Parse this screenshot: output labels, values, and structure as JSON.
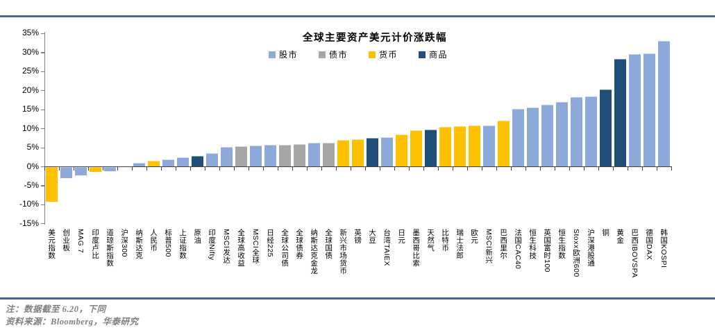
{
  "frame": {
    "background": "#ffffff",
    "top_rule_color": "#4a6a96",
    "bottom_rule_color": "#44618c"
  },
  "notes": {
    "line1": "注：数据截至 6.20，下同",
    "line2": "资料来源：Bloomberg，华泰研究"
  },
  "chart_data": {
    "type": "bar",
    "title": "全球主要资产美元计价涨跌幅",
    "value_unit": "%",
    "ylim": [
      -15,
      35
    ],
    "ytick_step": 5,
    "ytick_labels": [
      "35%",
      "30%",
      "25%",
      "20%",
      "15%",
      "10%",
      "5%",
      "0%",
      "-5%",
      "-10%",
      "-15%"
    ],
    "grid": false,
    "legend_position": "top-center",
    "axis_colors": {
      "value_axis": "#7f7f7f",
      "category_axis": "#404040"
    },
    "categories_legend": [
      {
        "id": "stock",
        "label": "股市",
        "color": "#8EAADB"
      },
      {
        "id": "bond",
        "label": "债市",
        "color": "#A6A6A6"
      },
      {
        "id": "currency",
        "label": "货币",
        "color": "#FFC000"
      },
      {
        "id": "commodity",
        "label": "商品",
        "color": "#1F4E79"
      }
    ],
    "bars": [
      {
        "label": "美元指数",
        "group": "currency",
        "value": -9.0
      },
      {
        "label": "创业板",
        "group": "stock",
        "value": -2.8
      },
      {
        "label": "MAG 7",
        "group": "stock",
        "value": -2.2
      },
      {
        "label": "印度卢比",
        "group": "currency",
        "value": -1.3
      },
      {
        "label": "道琼斯指数",
        "group": "stock",
        "value": -1.0
      },
      {
        "label": "沪深300",
        "group": "stock",
        "value": 0.0
      },
      {
        "label": "纳斯达克",
        "group": "stock",
        "value": 1.0
      },
      {
        "label": "人民币",
        "group": "currency",
        "value": 1.5
      },
      {
        "label": "标普500",
        "group": "stock",
        "value": 1.9
      },
      {
        "label": "上证指数",
        "group": "stock",
        "value": 2.5
      },
      {
        "label": "原油",
        "group": "commodity",
        "value": 2.8
      },
      {
        "label": "印度Nifty",
        "group": "stock",
        "value": 3.5
      },
      {
        "label": "MSCI发达",
        "group": "stock",
        "value": 5.2
      },
      {
        "label": "全球高收益",
        "group": "bond",
        "value": 5.4
      },
      {
        "label": "MSCI全球",
        "group": "stock",
        "value": 5.6
      },
      {
        "label": "日经225",
        "group": "stock",
        "value": 5.7
      },
      {
        "label": "全球公司债",
        "group": "bond",
        "value": 5.8
      },
      {
        "label": "全球债券",
        "group": "bond",
        "value": 6.0
      },
      {
        "label": "纳斯达克金龙",
        "group": "stock",
        "value": 6.2
      },
      {
        "label": "全球国债",
        "group": "bond",
        "value": 6.3
      },
      {
        "label": "新兴市场货币",
        "group": "currency",
        "value": 7.0
      },
      {
        "label": "英镑",
        "group": "currency",
        "value": 7.2
      },
      {
        "label": "大豆",
        "group": "commodity",
        "value": 7.6
      },
      {
        "label": "台湾TAIEX",
        "group": "stock",
        "value": 7.8
      },
      {
        "label": "日元",
        "group": "currency",
        "value": 8.4
      },
      {
        "label": "墨西哥比索",
        "group": "currency",
        "value": 9.5
      },
      {
        "label": "天然气",
        "group": "commodity",
        "value": 9.8
      },
      {
        "label": "比特币",
        "group": "currency",
        "value": 10.4
      },
      {
        "label": "瑞士法郎",
        "group": "currency",
        "value": 10.6
      },
      {
        "label": "欧元",
        "group": "currency",
        "value": 10.8
      },
      {
        "label": "MSCI新兴",
        "group": "stock",
        "value": 10.8
      },
      {
        "label": "巴西里尔",
        "group": "currency",
        "value": 12.2
      },
      {
        "label": "法国CAC40",
        "group": "stock",
        "value": 15.3
      },
      {
        "label": "恒生科技",
        "group": "stock",
        "value": 15.5
      },
      {
        "label": "英国富时100",
        "group": "stock",
        "value": 16.3
      },
      {
        "label": "恒生指数",
        "group": "stock",
        "value": 17.0
      },
      {
        "label": "Stoxx欧洲600",
        "group": "stock",
        "value": 18.4
      },
      {
        "label": "沪深港股通",
        "group": "stock",
        "value": 18.5
      },
      {
        "label": "铜",
        "group": "commodity",
        "value": 20.4
      },
      {
        "label": "黄金",
        "group": "commodity",
        "value": 28.4
      },
      {
        "label": "巴西IBOVSPA",
        "group": "stock",
        "value": 29.6
      },
      {
        "label": "德国DAX",
        "group": "stock",
        "value": 29.8
      },
      {
        "label": "韩国KOSPI",
        "group": "stock",
        "value": 33.0
      }
    ]
  }
}
